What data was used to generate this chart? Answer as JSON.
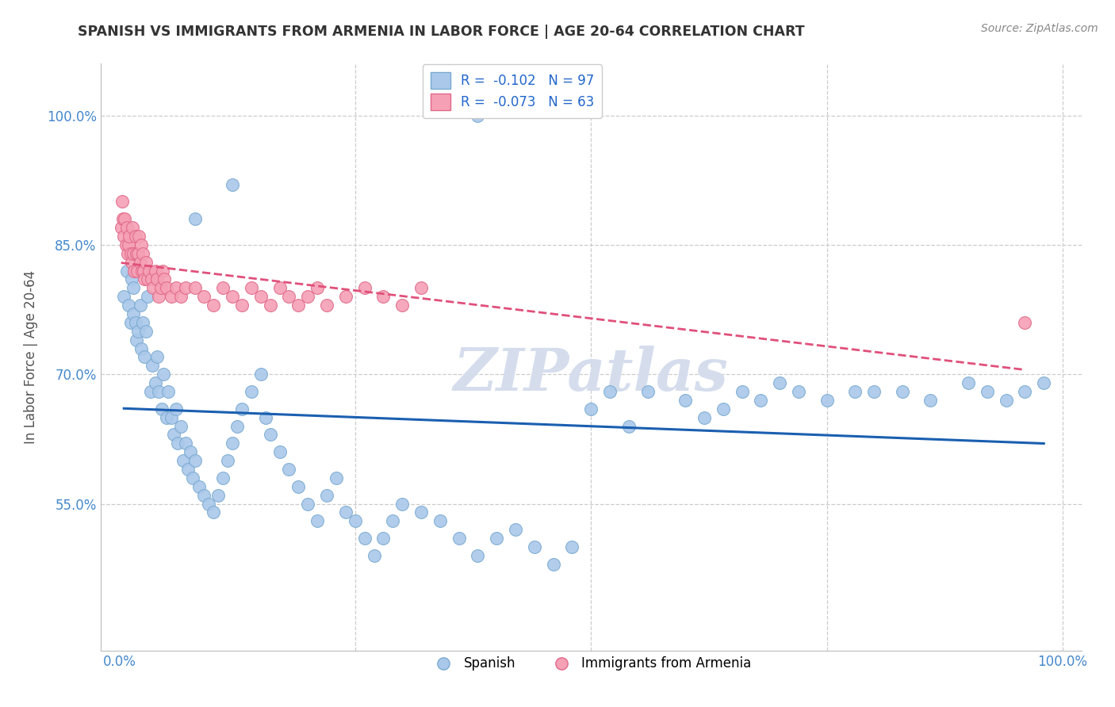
{
  "title": "SPANISH VS IMMIGRANTS FROM ARMENIA IN LABOR FORCE | AGE 20-64 CORRELATION CHART",
  "source_text": "Source: ZipAtlas.com",
  "ylabel": "In Labor Force | Age 20-64",
  "xlim": [
    -0.02,
    1.02
  ],
  "ylim": [
    0.38,
    1.06
  ],
  "y_ticks": [
    0.55,
    0.7,
    0.85,
    1.0
  ],
  "y_tick_labels": [
    "55.0%",
    "70.0%",
    "85.0%",
    "100.0%"
  ],
  "x_tick_labels": [
    "0.0%",
    "100.0%"
  ],
  "R_spanish": -0.102,
  "N_spanish": 97,
  "R_armenia": -0.073,
  "N_armenia": 63,
  "legend_labels": [
    "Spanish",
    "Immigrants from Armenia"
  ],
  "spanish_color": "#aac8ea",
  "armenia_color": "#f5a0b5",
  "spanish_edge_color": "#7aaad0",
  "armenia_edge_color": "#e06888",
  "spanish_line_color": "#1a5fb0",
  "armenia_line_color": "#e0507a",
  "background_color": "#ffffff",
  "grid_color": "#cccccc",
  "title_color": "#333333",
  "watermark_color": "#d5dded",
  "spanish_x": [
    0.005,
    0.008,
    0.01,
    0.012,
    0.013,
    0.015,
    0.015,
    0.017,
    0.018,
    0.02,
    0.022,
    0.023,
    0.025,
    0.027,
    0.028,
    0.03,
    0.033,
    0.035,
    0.038,
    0.04,
    0.042,
    0.045,
    0.047,
    0.05,
    0.052,
    0.055,
    0.058,
    0.06,
    0.062,
    0.065,
    0.068,
    0.07,
    0.073,
    0.075,
    0.078,
    0.08,
    0.085,
    0.09,
    0.095,
    0.1,
    0.105,
    0.11,
    0.115,
    0.12,
    0.125,
    0.13,
    0.14,
    0.15,
    0.155,
    0.16,
    0.17,
    0.18,
    0.19,
    0.2,
    0.21,
    0.22,
    0.23,
    0.24,
    0.25,
    0.26,
    0.27,
    0.28,
    0.29,
    0.3,
    0.32,
    0.34,
    0.36,
    0.38,
    0.4,
    0.42,
    0.44,
    0.46,
    0.48,
    0.5,
    0.52,
    0.54,
    0.56,
    0.6,
    0.62,
    0.64,
    0.66,
    0.68,
    0.7,
    0.72,
    0.75,
    0.78,
    0.8,
    0.83,
    0.86,
    0.9,
    0.92,
    0.94,
    0.96,
    0.98,
    0.38,
    0.12,
    0.08
  ],
  "spanish_y": [
    0.79,
    0.82,
    0.78,
    0.76,
    0.81,
    0.77,
    0.8,
    0.76,
    0.74,
    0.75,
    0.78,
    0.73,
    0.76,
    0.72,
    0.75,
    0.79,
    0.68,
    0.71,
    0.69,
    0.72,
    0.68,
    0.66,
    0.7,
    0.65,
    0.68,
    0.65,
    0.63,
    0.66,
    0.62,
    0.64,
    0.6,
    0.62,
    0.59,
    0.61,
    0.58,
    0.6,
    0.57,
    0.56,
    0.55,
    0.54,
    0.56,
    0.58,
    0.6,
    0.62,
    0.64,
    0.66,
    0.68,
    0.7,
    0.65,
    0.63,
    0.61,
    0.59,
    0.57,
    0.55,
    0.53,
    0.56,
    0.58,
    0.54,
    0.53,
    0.51,
    0.49,
    0.51,
    0.53,
    0.55,
    0.54,
    0.53,
    0.51,
    0.49,
    0.51,
    0.52,
    0.5,
    0.48,
    0.5,
    0.66,
    0.68,
    0.64,
    0.68,
    0.67,
    0.65,
    0.66,
    0.68,
    0.67,
    0.69,
    0.68,
    0.67,
    0.68,
    0.68,
    0.68,
    0.67,
    0.69,
    0.68,
    0.67,
    0.68,
    0.69,
    1.0,
    0.92,
    0.88
  ],
  "armenia_x": [
    0.002,
    0.003,
    0.004,
    0.005,
    0.006,
    0.007,
    0.008,
    0.009,
    0.01,
    0.011,
    0.012,
    0.013,
    0.014,
    0.015,
    0.016,
    0.017,
    0.018,
    0.019,
    0.02,
    0.021,
    0.022,
    0.023,
    0.024,
    0.025,
    0.026,
    0.027,
    0.028,
    0.03,
    0.032,
    0.034,
    0.036,
    0.038,
    0.04,
    0.042,
    0.044,
    0.046,
    0.048,
    0.05,
    0.055,
    0.06,
    0.065,
    0.07,
    0.08,
    0.09,
    0.1,
    0.11,
    0.12,
    0.13,
    0.14,
    0.15,
    0.16,
    0.17,
    0.18,
    0.19,
    0.2,
    0.21,
    0.22,
    0.24,
    0.26,
    0.28,
    0.3,
    0.32,
    0.96
  ],
  "armenia_y": [
    0.87,
    0.9,
    0.88,
    0.86,
    0.88,
    0.85,
    0.87,
    0.84,
    0.85,
    0.86,
    0.84,
    0.83,
    0.87,
    0.84,
    0.82,
    0.86,
    0.84,
    0.82,
    0.84,
    0.86,
    0.83,
    0.85,
    0.82,
    0.84,
    0.82,
    0.81,
    0.83,
    0.81,
    0.82,
    0.81,
    0.8,
    0.82,
    0.81,
    0.79,
    0.8,
    0.82,
    0.81,
    0.8,
    0.79,
    0.8,
    0.79,
    0.8,
    0.8,
    0.79,
    0.78,
    0.8,
    0.79,
    0.78,
    0.8,
    0.79,
    0.78,
    0.8,
    0.79,
    0.78,
    0.79,
    0.8,
    0.78,
    0.79,
    0.8,
    0.79,
    0.78,
    0.8,
    0.76
  ],
  "grid_dashes": [
    0.25,
    0.5,
    0.75,
    1.0
  ]
}
